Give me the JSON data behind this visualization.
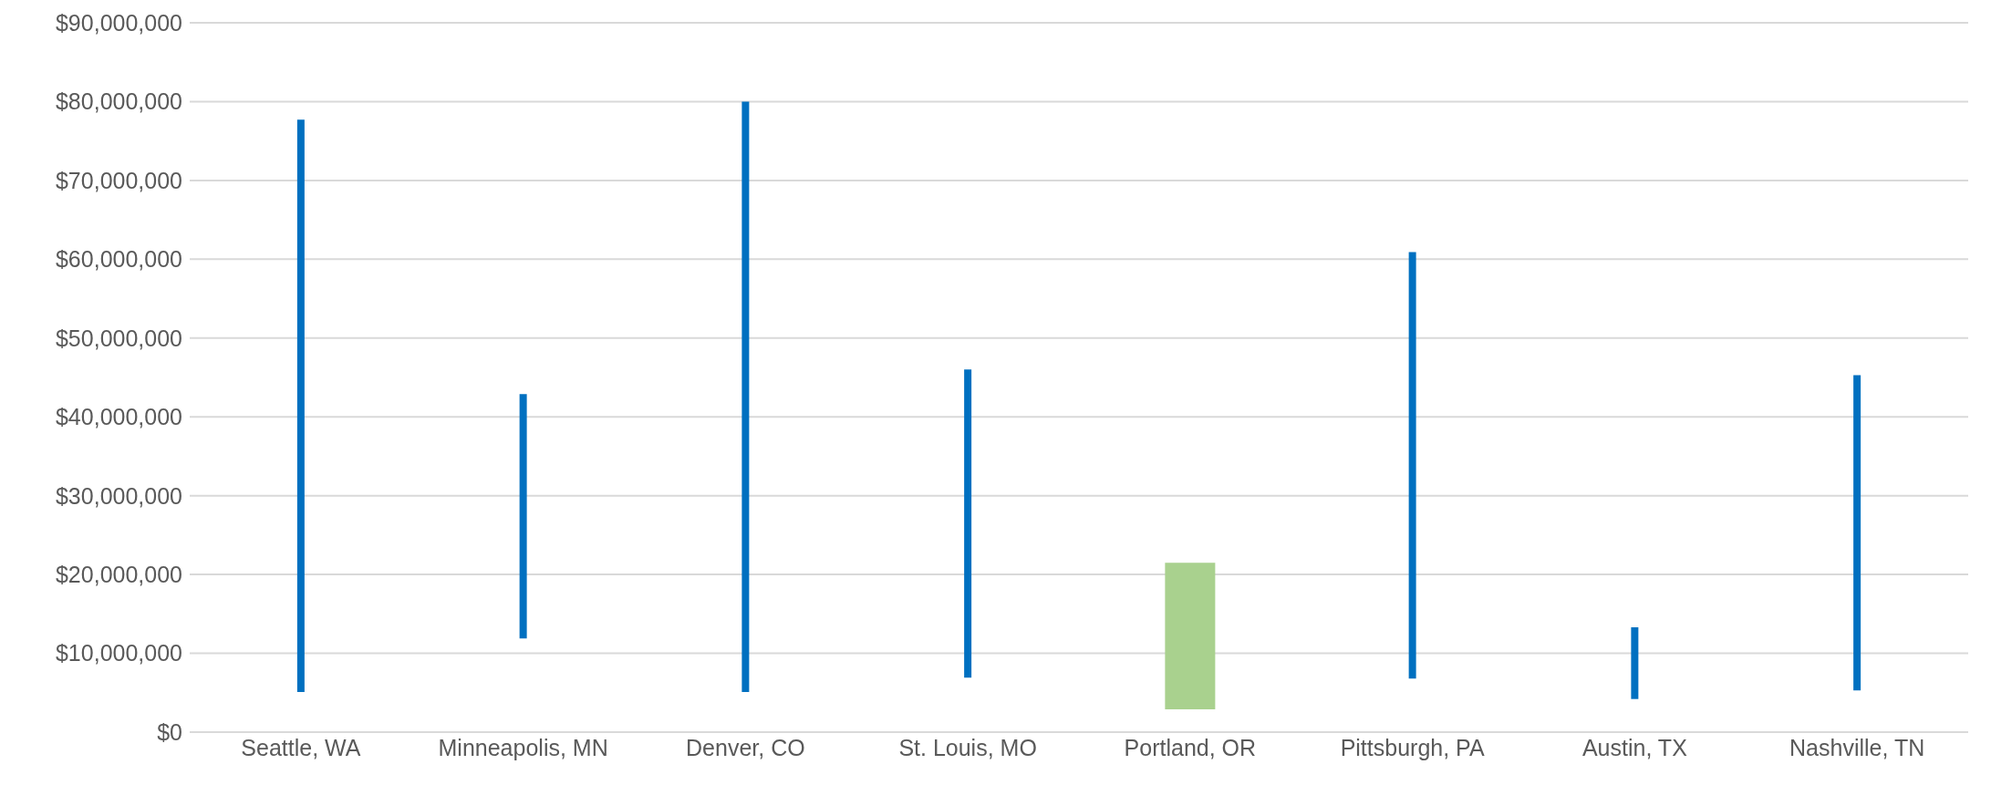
{
  "chart_data": {
    "type": "bar",
    "categories": [
      "Seattle, WA",
      "Minneapolis, MN",
      "Denver, CO",
      "St. Louis, MO",
      "Portland, OR",
      "Pittsburgh, PA",
      "Austin, TX",
      "Nashville, TN"
    ],
    "base": [
      5100000,
      11900000,
      5100000,
      6900000,
      2900000,
      6800000,
      4200000,
      5300000
    ],
    "values": [
      72600000,
      31000000,
      74900000,
      39100000,
      18600000,
      54100000,
      9100000,
      40000000
    ],
    "colors": [
      "#0070c0",
      "#0070c0",
      "#0070c0",
      "#0070c0",
      "#a9d18e",
      "#0070c0",
      "#0070c0",
      "#0070c0"
    ],
    "ylim": [
      0,
      90000000
    ],
    "yticks": [
      {
        "value": 0,
        "label": "$0"
      },
      {
        "value": 10000000,
        "label": "$10,000,000"
      },
      {
        "value": 20000000,
        "label": "$20,000,000"
      },
      {
        "value": 30000000,
        "label": "$30,000,000"
      },
      {
        "value": 40000000,
        "label": "$40,000,000"
      },
      {
        "value": 50000000,
        "label": "$50,000,000"
      },
      {
        "value": 60000000,
        "label": "$60,000,000"
      },
      {
        "value": 70000000,
        "label": "$70,000,000"
      },
      {
        "value": 80000000,
        "label": "$80,000,000"
      },
      {
        "value": 90000000,
        "label": "$90,000,000"
      }
    ],
    "grid": "y"
  }
}
